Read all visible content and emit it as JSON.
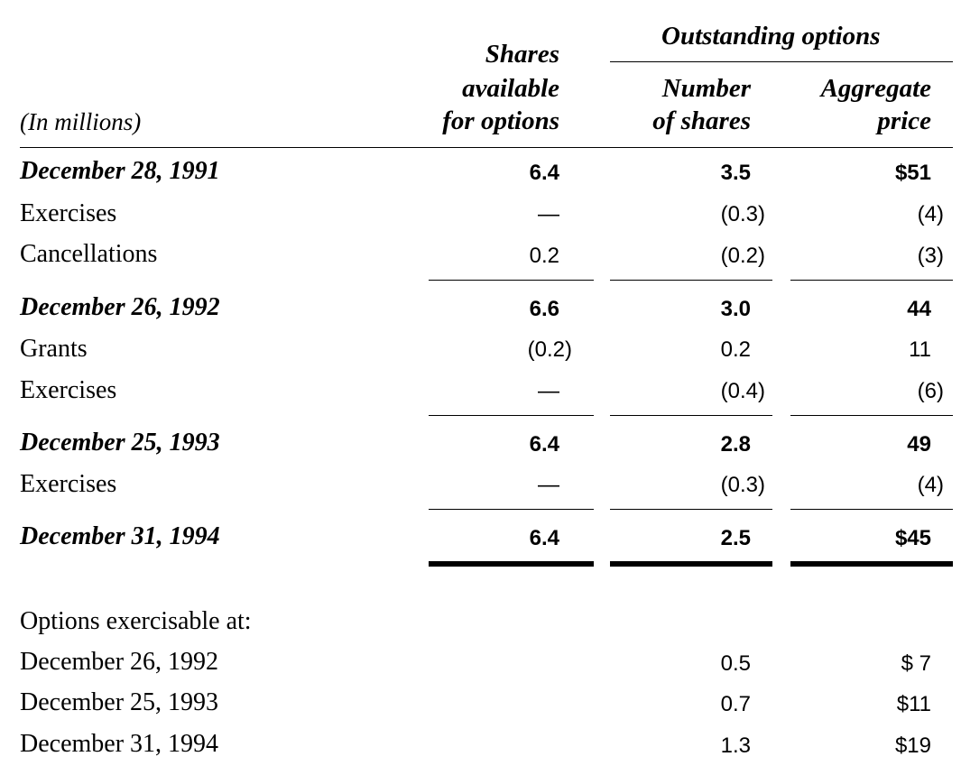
{
  "header": {
    "group_title": "Outstanding options",
    "col1": [
      "Shares",
      "available",
      "for options"
    ],
    "col2": [
      "Number",
      "of shares"
    ],
    "col3": [
      "Aggregate",
      "price"
    ],
    "units": "(In millions)"
  },
  "rows": [
    {
      "label": "December 28, 1991",
      "bold": true,
      "c1": "6.4",
      "c2": "3.5",
      "c3": "$51"
    },
    {
      "label": "Exercises",
      "bold": false,
      "c1": "—",
      "c2": "(0.3)",
      "c3": "(4)"
    },
    {
      "label": "Cancellations",
      "bold": false,
      "c1": "0.2",
      "c2": "(0.2)",
      "c3": "(3)"
    },
    {
      "label": "December 26, 1992",
      "bold": true,
      "c1": "6.6",
      "c2": "3.0",
      "c3": "44"
    },
    {
      "label": "Grants",
      "bold": false,
      "c1": "(0.2)",
      "c2": "0.2",
      "c3": "11"
    },
    {
      "label": "Exercises",
      "bold": false,
      "c1": "—",
      "c2": "(0.4)",
      "c3": "(6)"
    },
    {
      "label": "December 25, 1993",
      "bold": true,
      "c1": "6.4",
      "c2": "2.8",
      "c3": "49"
    },
    {
      "label": "Exercises",
      "bold": false,
      "c1": "—",
      "c2": "(0.3)",
      "c3": "(4)"
    },
    {
      "label": "December 31, 1994",
      "bold": true,
      "c1": "6.4",
      "c2": "2.5",
      "c3": "$45"
    }
  ],
  "exercisable": {
    "heading": "Options exercisable at:",
    "rows": [
      {
        "label": "December 26, 1992",
        "c2": "0.5",
        "c3": "$ 7"
      },
      {
        "label": "December 25, 1993",
        "c2": "0.7",
        "c3": "$11"
      },
      {
        "label": "December 31, 1994",
        "c2": "1.3",
        "c3": "$19"
      }
    ]
  }
}
